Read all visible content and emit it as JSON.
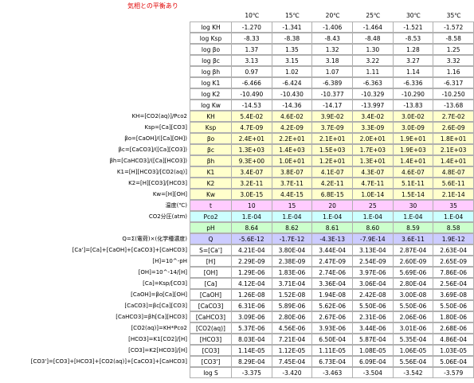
{
  "title": "気相との平衡あり",
  "headers": [
    "10℃",
    "15℃",
    "20℃",
    "25℃",
    "30℃",
    "35℃"
  ],
  "rows": [
    {
      "symbol": "log KH",
      "values": [
        "-1.270",
        "-1.341",
        "-1.406",
        "-1.464",
        "-1.521",
        "-1.572"
      ]
    },
    {
      "symbol": "log Ksp",
      "values": [
        "-8.33",
        "-8.38",
        "-8.43",
        "-8.48",
        "-8.53",
        "-8.58"
      ]
    },
    {
      "symbol": "log βo",
      "values": [
        "1.37",
        "1.35",
        "1.32",
        "1.30",
        "1.28",
        "1.25"
      ]
    },
    {
      "symbol": "log βc",
      "values": [
        "3.13",
        "3.15",
        "3.18",
        "3.22",
        "3.27",
        "3.32"
      ]
    },
    {
      "symbol": "log βh",
      "values": [
        "0.97",
        "1.02",
        "1.07",
        "1.11",
        "1.14",
        "1.16"
      ]
    },
    {
      "symbol": "log K1",
      "values": [
        "-6.466",
        "-6.424",
        "-6.389",
        "-6.363",
        "-6.336",
        "-6.317"
      ]
    },
    {
      "symbol": "log K2",
      "values": [
        "-10.490",
        "-10.430",
        "-10.377",
        "-10.329",
        "-10.290",
        "-10.250"
      ]
    },
    {
      "symbol": "log Kw",
      "values": [
        "-14.53",
        "-14.36",
        "-14.17",
        "-13.997",
        "-13.83",
        "-13.68"
      ]
    },
    {
      "label": "KH=[CO2(aq)]/Pco2",
      "symbol": "KH",
      "values": [
        "5.4E-02",
        "4.6E-02",
        "3.9E-02",
        "3.4E-02",
        "3.0E-02",
        "2.7E-02"
      ]
    },
    {
      "label": "Ksp=[Ca][CO3]",
      "symbol": "Ksp",
      "values": [
        "4.7E-09",
        "4.2E-09",
        "3.7E-09",
        "3.3E-09",
        "3.0E-09",
        "2.6E-09"
      ]
    },
    {
      "label": "βo=[CaOH]/([Ca][OH])",
      "symbol": "βo",
      "values": [
        "2.4E+01",
        "2.2E+01",
        "2.1E+01",
        "2.0E+01",
        "1.9E+01",
        "1.8E+01"
      ]
    },
    {
      "label": "βc=[CaCO3]/([Ca][CO3])",
      "symbol": "βc",
      "values": [
        "1.3E+03",
        "1.4E+03",
        "1.5E+03",
        "1.7E+03",
        "1.9E+03",
        "2.1E+03"
      ]
    },
    {
      "label": "βh=[CaHCO3]/([Ca][HCO3])",
      "symbol": "βh",
      "values": [
        "9.3E+00",
        "1.0E+01",
        "1.2E+01",
        "1.3E+01",
        "1.4E+01",
        "1.4E+01"
      ]
    },
    {
      "label": "K1=[H][HCO3]/[CO2(aq)]",
      "symbol": "K1",
      "values": [
        "3.4E-07",
        "3.8E-07",
        "4.1E-07",
        "4.3E-07",
        "4.6E-07",
        "4.8E-07"
      ]
    },
    {
      "label": "K2=[H][CO3]/[HCO3]",
      "symbol": "K2",
      "values": [
        "3.2E-11",
        "3.7E-11",
        "4.2E-11",
        "4.7E-11",
        "5.1E-11",
        "5.6E-11"
      ]
    },
    {
      "label": "Kw=[H][OH]",
      "symbol": "Kw",
      "values": [
        "3.0E-15",
        "4.4E-15",
        "6.8E-15",
        "1.0E-14",
        "1.5E-14",
        "2.1E-14"
      ]
    },
    {
      "label": "温度(℃)",
      "symbol": "t",
      "values": [
        "10",
        "15",
        "20",
        "25",
        "30",
        "35"
      ]
    },
    {
      "label": "CO2分圧(atm)",
      "symbol": "Pco2",
      "values": [
        "1.E-04",
        "1.E-04",
        "1.E-04",
        "1.E-04",
        "1.E-04",
        "1.E-04"
      ]
    },
    {
      "symbol": "pH",
      "values": [
        "8.64",
        "8.62",
        "8.61",
        "8.60",
        "8.59",
        "8.58"
      ]
    },
    {
      "label": "Q=Σ(電荷)×(化学種濃度)",
      "symbol": "Q",
      "values": [
        "-5.6E-12",
        "-1.7E-12",
        "-4.3E-13",
        "-7.9E-14",
        "3.6E-11",
        "1.9E-12"
      ]
    },
    {
      "label": "[Ca']=[Ca]+[CaOH]+[CaCO3]+[CaHCO3]",
      "symbol": "S=[Ca']",
      "values": [
        "4.21E-04",
        "3.80E-04",
        "3.44E-04",
        "3.13E-04",
        "2.87E-04",
        "2.63E-04"
      ]
    },
    {
      "label": "[H]=10^-pH",
      "symbol": "[H]",
      "values": [
        "2.29E-09",
        "2.38E-09",
        "2.47E-09",
        "2.54E-09",
        "2.60E-09",
        "2.65E-09"
      ]
    },
    {
      "label": "[OH]=10^-14/[H]",
      "symbol": "[OH]",
      "values": [
        "1.29E-06",
        "1.83E-06",
        "2.74E-06",
        "3.97E-06",
        "5.69E-06",
        "7.86E-06"
      ]
    },
    {
      "label": "[Ca]=Ksp/[CO3]",
      "symbol": "[Ca]",
      "values": [
        "4.12E-04",
        "3.71E-04",
        "3.36E-04",
        "3.06E-04",
        "2.80E-04",
        "2.56E-04"
      ]
    },
    {
      "label": "[CaOH]=βo[Ca][OH]",
      "symbol": "[CaOH]",
      "values": [
        "1.26E-08",
        "1.52E-08",
        "1.94E-08",
        "2.42E-08",
        "3.00E-08",
        "3.69E-08"
      ]
    },
    {
      "label": "[CaCO3]=βc[Ca][CO3]",
      "symbol": "[CaCO3]",
      "values": [
        "6.31E-06",
        "5.89E-06",
        "5.62E-06",
        "5.50E-06",
        "5.50E-06",
        "5.50E-06"
      ]
    },
    {
      "label": "[CaHCO3]=βh[Ca][HCO3]",
      "symbol": "[CaHCO3]",
      "values": [
        "3.09E-06",
        "2.80E-06",
        "2.67E-06",
        "2.31E-06",
        "2.06E-06",
        "1.80E-06"
      ]
    },
    {
      "label": "[CO2(aq)]=KH*Pco2",
      "symbol": "[CO2(aq)]",
      "values": [
        "5.37E-06",
        "4.56E-06",
        "3.93E-06",
        "3.44E-06",
        "3.01E-06",
        "2.68E-06"
      ]
    },
    {
      "label": "[HCO3]=K1[CO2]/[H]",
      "symbol": "[HCO3]",
      "values": [
        "8.03E-04",
        "7.21E-04",
        "6.50E-04",
        "5.87E-04",
        "5.35E-04",
        "4.86E-04"
      ]
    },
    {
      "label": "[CO3]=K2[HCO3]/[H]",
      "symbol": "[CO3]",
      "values": [
        "1.14E-05",
        "1.12E-05",
        "1.11E-05",
        "1.08E-05",
        "1.06E-05",
        "1.03E-05"
      ]
    },
    {
      "label": "[CO3']=[CO3]+[HCO3]+[CO2(aq)]+[CaCO3]+[CaHCO3]",
      "symbol": "[CO3']",
      "values": [
        "8.29E-04",
        "7.45E-04",
        "6.73E-04",
        "6.09E-04",
        "5.56E-04",
        "5.06E-04"
      ]
    },
    {
      "symbol": "log S",
      "values": [
        "-3.375",
        "-3.420",
        "-3.463",
        "-3.504",
        "-3.542",
        "-3.579"
      ]
    }
  ]
}
